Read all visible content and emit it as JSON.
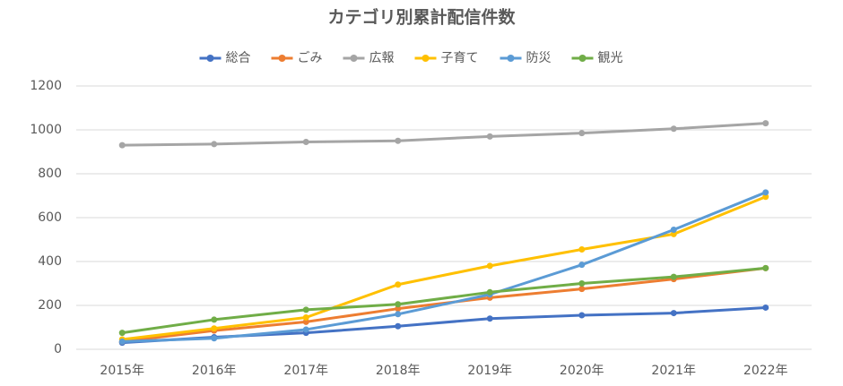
{
  "chart_data": {
    "type": "line",
    "title": "カテゴリ別累計配信件数",
    "categories": [
      "2015年",
      "2016年",
      "2017年",
      "2018年",
      "2019年",
      "2020年",
      "2021年",
      "2022年"
    ],
    "series": [
      {
        "name": "総合",
        "color": "#4472c4",
        "values": [
          30,
          55,
          75,
          105,
          140,
          155,
          165,
          190
        ]
      },
      {
        "name": "ごみ",
        "color": "#ed7d31",
        "values": [
          35,
          85,
          125,
          185,
          235,
          275,
          320,
          370
        ]
      },
      {
        "name": "広報",
        "color": "#a5a5a5",
        "values": [
          930,
          935,
          945,
          950,
          970,
          985,
          1005,
          1030
        ]
      },
      {
        "name": "子育て",
        "color": "#ffc000",
        "values": [
          45,
          95,
          145,
          295,
          380,
          455,
          525,
          695
        ]
      },
      {
        "name": "防災",
        "color": "#5b9bd5",
        "values": [
          35,
          50,
          90,
          160,
          250,
          385,
          545,
          715
        ]
      },
      {
        "name": "観光",
        "color": "#70ad47",
        "values": [
          75,
          135,
          180,
          205,
          260,
          300,
          330,
          370
        ]
      }
    ],
    "ylim": [
      0,
      1200
    ],
    "yticks": [
      0,
      200,
      400,
      600,
      800,
      1000,
      1200
    ],
    "grid": true,
    "legend": "top"
  }
}
